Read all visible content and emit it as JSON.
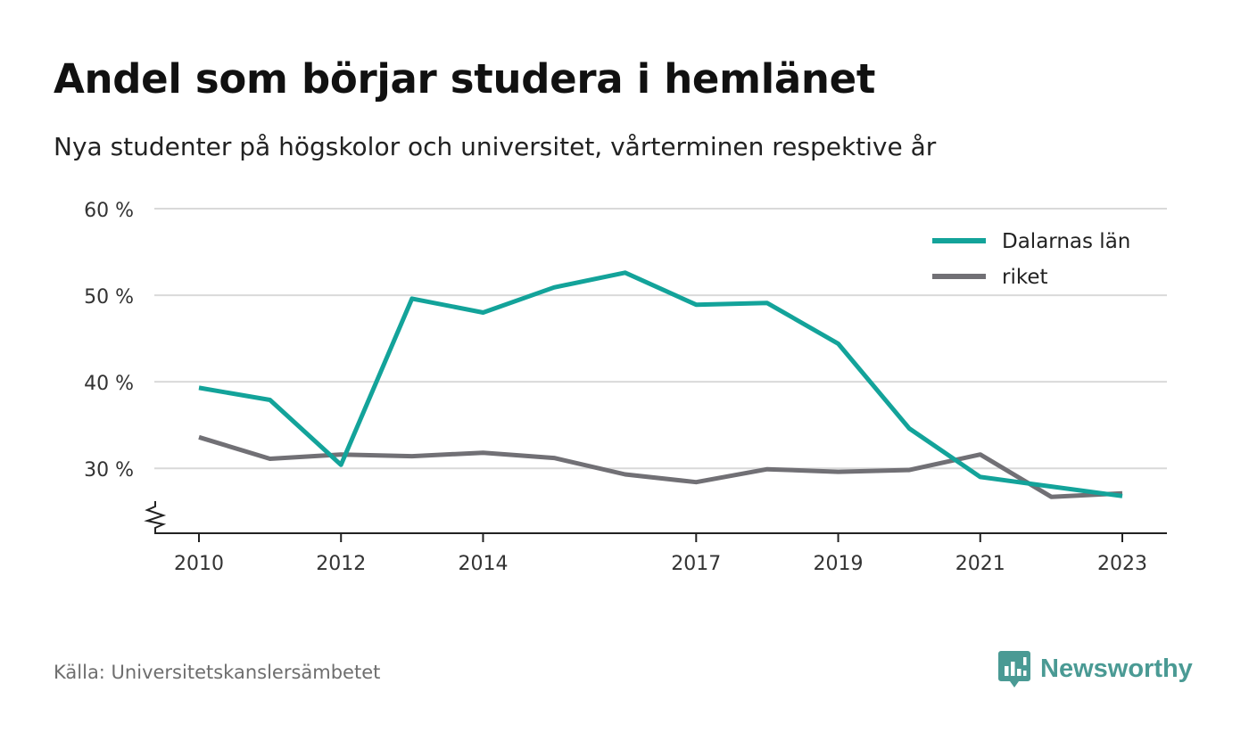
{
  "title": "Andel som börjar studera i hemlänet",
  "subtitle": "Nya studenter på högskolor och universitet, vårterminen respektive år",
  "source": "Källa: Universitetskanslersämbetet",
  "brand": {
    "name": "Newsworthy",
    "icon": "newsworthy-logo-icon",
    "color": "#4a9a94"
  },
  "chart_data": {
    "type": "line",
    "x": [
      2010,
      2011,
      2012,
      2013,
      2014,
      2015,
      2016,
      2017,
      2018,
      2019,
      2020,
      2021,
      2022,
      2023
    ],
    "x_ticks": [
      2010,
      2012,
      2014,
      2017,
      2019,
      2021,
      2023
    ],
    "y_ticks": [
      30,
      40,
      50,
      60
    ],
    "y_tick_labels": [
      "30 %",
      "40 %",
      "50 %",
      "60 %"
    ],
    "ylim": [
      22.5,
      60
    ],
    "y_axis_break": true,
    "grid": true,
    "legend_position": "top-right",
    "series": [
      {
        "name": "Dalarnas län",
        "color": "#13a39a",
        "values": [
          39.3,
          37.9,
          30.4,
          49.6,
          48.0,
          50.9,
          52.6,
          48.9,
          49.1,
          44.4,
          34.6,
          29.0,
          27.9,
          26.8
        ]
      },
      {
        "name": "riket",
        "color": "#717075",
        "values": [
          33.6,
          31.1,
          31.6,
          31.4,
          31.8,
          31.2,
          29.3,
          28.4,
          29.9,
          29.6,
          29.8,
          31.6,
          26.7,
          27.1
        ]
      }
    ]
  }
}
